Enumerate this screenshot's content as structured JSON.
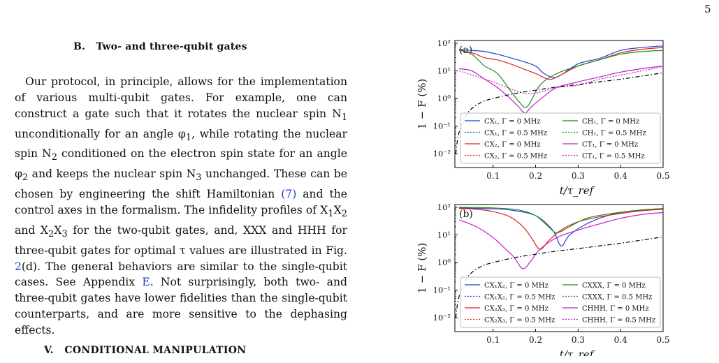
{
  "page_number": "5",
  "section_b_title": "B.   Two- and three-qubit gates",
  "para": {
    "t1": "Our protocol, in principle, allows for the implementation of various multi-qubit gates. For example, one can construct a gate such that it rotates the nuclear spin N",
    "s1": "1",
    "t2": " unconditionally for an angle φ",
    "s2": "1",
    "t3": ", while rotating the nuclear spin N",
    "s3": "2",
    "t4": " conditioned on the electron spin state for an angle φ",
    "s4": "2",
    "t5": " and keeps the nuclear spin N",
    "s5": "3",
    "t6": " unchanged. These can be chosen by engineering the shift Hamiltonian ",
    "ref_eq": "(7)",
    "t7": " and the control axes in the formalism.  The infidelity profiles of X",
    "s7a": "1",
    "t7b": "X",
    "s7b": "2",
    "t7c": " and X",
    "s7c": "2",
    "t7d": "X",
    "s7d": "3",
    "t8": " for the two-qubit gates, and, XXX and HHH for three-qubit gates for optimal τ values are illustrated in Fig. ",
    "ref_fig": "2",
    "t9": "(d). The general behaviors are similar to the single-qubit cases. See Appendix ",
    "ref_app": "E",
    "t10": ". Not surprisingly, both two- and three-qubit gates have lower fidelities than the single-qubit counterparts, and are more sensitive to the dephasing effects."
  },
  "section_v_title": "V.   CONDITIONAL MANIPULATION",
  "chart_data": [
    {
      "type": "line",
      "panel_label": "(a)",
      "xlabel": "t/τ_ref",
      "ylabel": "1 − F (%)",
      "x_ticks": [
        "0.1",
        "0.2",
        "0.3",
        "0.4",
        "0.5"
      ],
      "y_ticks": [
        "10⁻²",
        "10⁻¹",
        "10⁰",
        "10¹",
        "10²"
      ],
      "xlim": [
        0.01,
        0.5
      ],
      "ylim_log10": [
        -2.5,
        2.1
      ],
      "y_scale": "log",
      "legend_placement": "bottom",
      "legend": [
        {
          "name": "CX₁, Γ = 0 MHz",
          "color": "#1f3fd6",
          "dash": false
        },
        {
          "name": "CH₁, Γ = 0 MHz",
          "color": "#208a20",
          "dash": false
        },
        {
          "name": "CX₁, Γ = 0.5 MHz",
          "color": "#1f3fd6",
          "dash": true
        },
        {
          "name": "CH₁, Γ = 0.5 MHz",
          "color": "#208a20",
          "dash": true
        },
        {
          "name": "CX₂, Γ = 0 MHz",
          "color": "#e3211c",
          "dash": false
        },
        {
          "name": "CT₁, Γ = 0 MHz",
          "color": "#c020c8",
          "dash": false
        },
        {
          "name": "CX₂, Γ = 0.5 MHz",
          "color": "#e3211c",
          "dash": true
        },
        {
          "name": "CT₁, Γ = 0.5 MHz",
          "color": "#c020c8",
          "dash": true
        }
      ],
      "series": [
        {
          "name": "CX₁, Γ = 0 MHz",
          "x": [
            0.02,
            0.05,
            0.08,
            0.11,
            0.14,
            0.17,
            0.2,
            0.22,
            0.25,
            0.3,
            0.35,
            0.4,
            0.45,
            0.5
          ],
          "y": [
            60,
            55,
            50,
            40,
            30,
            22,
            15,
            8,
            6,
            18,
            28,
            55,
            70,
            80
          ]
        },
        {
          "name": "CX₂, Γ = 0 MHz",
          "x": [
            0.02,
            0.05,
            0.08,
            0.11,
            0.14,
            0.17,
            0.2,
            0.23,
            0.25,
            0.3,
            0.35,
            0.4,
            0.45,
            0.5
          ],
          "y": [
            55,
            45,
            30,
            25,
            18,
            12,
            8,
            5,
            6,
            15,
            25,
            45,
            60,
            70
          ]
        },
        {
          "name": "CH₁, Γ = 0 MHz",
          "x": [
            0.02,
            0.05,
            0.08,
            0.11,
            0.14,
            0.16,
            0.18,
            0.21,
            0.25,
            0.3,
            0.35,
            0.4,
            0.45,
            0.5
          ],
          "y": [
            60,
            40,
            15,
            8,
            2,
            0.8,
            0.5,
            3,
            8,
            15,
            25,
            40,
            50,
            55
          ]
        },
        {
          "name": "CT₁, Γ = 0 MHz",
          "x": [
            0.02,
            0.05,
            0.08,
            0.11,
            0.14,
            0.16,
            0.175,
            0.19,
            0.22,
            0.25,
            0.3,
            0.35,
            0.4,
            0.45,
            0.5
          ],
          "y": [
            12,
            10,
            5,
            2.5,
            1,
            0.5,
            0.3,
            0.5,
            1.2,
            2.5,
            4,
            6,
            9,
            12,
            15
          ]
        },
        {
          "name": "CT₁, Γ = 0.5 MHz",
          "x": [
            0.02,
            0.1,
            0.18,
            0.25,
            0.3,
            0.35,
            0.4,
            0.45,
            0.5
          ],
          "y": [
            10,
            4,
            1.5,
            2.5,
            3,
            5,
            7,
            10,
            14
          ]
        },
        {
          "name": "reference (dash-dot)",
          "x": [
            0.012,
            0.02,
            0.04,
            0.07,
            0.1,
            0.15,
            0.2,
            0.25,
            0.3,
            0.35,
            0.4,
            0.45,
            0.5
          ],
          "y": [
            0.01,
            0.06,
            0.3,
            0.7,
            1.0,
            1.5,
            2.0,
            2.6,
            3.2,
            4.0,
            5.0,
            6.5,
            8.5
          ]
        }
      ]
    },
    {
      "type": "line",
      "panel_label": "(b)",
      "xlabel": "t/τ_ref",
      "ylabel": "1 − F (%)",
      "x_ticks": [
        "0.1",
        "0.2",
        "0.3",
        "0.4",
        "0.5"
      ],
      "y_ticks": [
        "10⁻²",
        "10⁻¹",
        "10⁰",
        "10¹",
        "10²"
      ],
      "xlim": [
        0.01,
        0.5
      ],
      "ylim_log10": [
        -2.5,
        2.1
      ],
      "y_scale": "log",
      "legend_placement": "bottom",
      "legend": [
        {
          "name": "CX₁X₂, Γ = 0 MHz",
          "color": "#1f3fd6",
          "dash": false
        },
        {
          "name": "CXXX, Γ = 0 MHz",
          "color": "#208a20",
          "dash": false
        },
        {
          "name": "CX₁X₂, Γ = 0.5 MHz",
          "color": "#1f3fd6",
          "dash": true
        },
        {
          "name": "CXXX, Γ = 0.5 MHz",
          "color": "#208a20",
          "dash": true
        },
        {
          "name": "CX₂X₃, Γ = 0 MHz",
          "color": "#e3211c",
          "dash": false
        },
        {
          "name": "CHHH, Γ = 0 MHz",
          "color": "#c020c8",
          "dash": false
        },
        {
          "name": "CX₂X₃, Γ = 0.5 MHz",
          "color": "#e3211c",
          "dash": true
        },
        {
          "name": "CHHH, Γ = 0.5 MHz",
          "color": "#c020c8",
          "dash": true
        }
      ],
      "series": [
        {
          "name": "CX₁X₂, Γ = 0 MHz",
          "x": [
            0.02,
            0.08,
            0.14,
            0.2,
            0.24,
            0.26,
            0.28,
            0.32,
            0.36,
            0.4,
            0.45,
            0.5
          ],
          "y": [
            95,
            90,
            80,
            50,
            15,
            4,
            10,
            25,
            45,
            65,
            80,
            90
          ]
        },
        {
          "name": "CX₂X₃, Γ = 0 MHz",
          "x": [
            0.02,
            0.06,
            0.1,
            0.14,
            0.17,
            0.19,
            0.21,
            0.23,
            0.26,
            0.3,
            0.35,
            0.4,
            0.45,
            0.5
          ],
          "y": [
            90,
            85,
            70,
            45,
            20,
            8,
            3,
            6,
            15,
            30,
            45,
            60,
            75,
            85
          ]
        },
        {
          "name": "CXXX, Γ = 0 MHz",
          "x": [
            0.02,
            0.1,
            0.16,
            0.2,
            0.23,
            0.25,
            0.28,
            0.32,
            0.38,
            0.45,
            0.5
          ],
          "y": [
            100,
            95,
            80,
            50,
            20,
            12,
            20,
            40,
            60,
            80,
            90
          ]
        },
        {
          "name": "CHHH, Γ = 0 MHz",
          "x": [
            0.02,
            0.06,
            0.1,
            0.13,
            0.15,
            0.17,
            0.19,
            0.21,
            0.25,
            0.3,
            0.35,
            0.4,
            0.45,
            0.5
          ],
          "y": [
            35,
            20,
            8,
            3,
            1.5,
            0.6,
            1.2,
            3,
            8,
            15,
            25,
            40,
            55,
            65
          ]
        },
        {
          "name": "reference (dash-dot)",
          "x": [
            0.012,
            0.02,
            0.04,
            0.07,
            0.1,
            0.15,
            0.2,
            0.25,
            0.3,
            0.35,
            0.4,
            0.45,
            0.5
          ],
          "y": [
            0.01,
            0.06,
            0.3,
            0.7,
            1.0,
            1.5,
            2.0,
            2.6,
            3.2,
            4.0,
            5.0,
            6.5,
            8.5
          ]
        }
      ]
    }
  ]
}
